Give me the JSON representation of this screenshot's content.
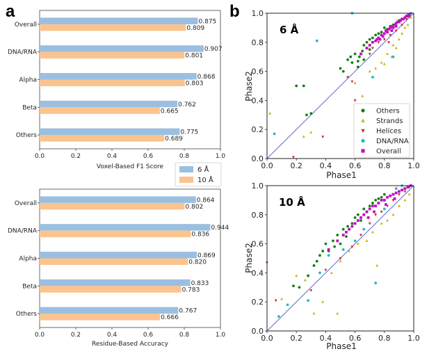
{
  "panel_labels": {
    "a": "a",
    "b": "b"
  },
  "colors": {
    "blue": "#9bbfe0",
    "orange": "#fbc48e",
    "line": "#5a6ad0",
    "others": "#118011",
    "strands": "#c8b400",
    "helices": "#d62020",
    "dna": "#20b8c8",
    "overall": "#c010c0"
  },
  "chart_data": [
    {
      "type": "bar",
      "orientation": "horizontal",
      "categories": [
        "Overall",
        "DNA/RNA",
        "Alpha",
        "Beta",
        "Others"
      ],
      "series": [
        {
          "name": "6 Å",
          "values": [
            0.875,
            0.907,
            0.868,
            0.762,
            0.775
          ]
        },
        {
          "name": "10 Å",
          "values": [
            0.809,
            0.801,
            0.803,
            0.665,
            0.689
          ]
        }
      ],
      "value_labels": [
        [
          "0.875",
          "0.907",
          "0.868",
          "0.762",
          "0.775"
        ],
        [
          "0.809",
          "0.801",
          "0.803",
          "0.665",
          "0.689"
        ]
      ],
      "xlabel": "Voxel-Based F1 Score",
      "xlim": [
        0,
        1
      ],
      "xticks": [
        "0.0",
        "0.2",
        "0.4",
        "0.6",
        "0.8",
        "1.0"
      ],
      "legend": "bottom-right"
    },
    {
      "type": "bar",
      "orientation": "horizontal",
      "categories": [
        "Overall",
        "DNA/RNA",
        "Alpha",
        "Beta",
        "Others"
      ],
      "series": [
        {
          "name": "6 Å",
          "values": [
            0.864,
            0.944,
            0.869,
            0.833,
            0.767
          ]
        },
        {
          "name": "10 Å",
          "values": [
            0.802,
            0.836,
            0.82,
            0.783,
            0.666
          ]
        }
      ],
      "value_labels": [
        [
          "0.864",
          "0.944",
          "0.869",
          "0.833",
          "0.767"
        ],
        [
          "0.802",
          "0.836",
          "0.820",
          "0.783",
          "0.666"
        ]
      ],
      "xlabel": "Residue-Based Accuracy",
      "xlim": [
        0,
        1
      ],
      "xticks": [
        "0.0",
        "0.2",
        "0.4",
        "0.6",
        "0.8",
        "1.0"
      ]
    },
    {
      "type": "scatter",
      "title": "6 Å",
      "xlabel": "Phase1",
      "ylabel": "Phase2",
      "xlim": [
        0,
        1
      ],
      "ylim": [
        0,
        1
      ],
      "ticks": [
        "0.0",
        "0.2",
        "0.4",
        "0.6",
        "0.8",
        "1.0"
      ],
      "legend": "bottom-right",
      "legend_entries": [
        "Others",
        "Strands",
        "Helices",
        "DNA/RNA",
        "Overall"
      ],
      "series": [
        {
          "name": "Others",
          "points": [
            [
              0.2,
              0.5
            ],
            [
              0.25,
              0.5
            ],
            [
              0.27,
              0.3
            ],
            [
              0.3,
              0.31
            ],
            [
              0.5,
              0.62
            ],
            [
              0.52,
              0.6
            ],
            [
              0.55,
              0.68
            ],
            [
              0.57,
              0.7
            ],
            [
              0.58,
              0.66
            ],
            [
              0.6,
              0.72
            ],
            [
              0.62,
              0.67
            ],
            [
              0.63,
              0.7
            ],
            [
              0.65,
              0.74
            ],
            [
              0.66,
              0.78
            ],
            [
              0.68,
              0.8
            ],
            [
              0.7,
              0.82
            ],
            [
              0.72,
              0.83
            ],
            [
              0.74,
              0.85
            ],
            [
              0.76,
              0.86
            ],
            [
              0.78,
              0.87
            ],
            [
              0.8,
              0.9
            ],
            [
              0.82,
              0.89
            ],
            [
              0.84,
              0.91
            ],
            [
              0.86,
              0.92
            ],
            [
              0.88,
              0.93
            ],
            [
              0.9,
              0.95
            ],
            [
              0.92,
              0.96
            ],
            [
              0.62,
              0.63
            ],
            [
              0.66,
              0.68
            ],
            [
              0.7,
              0.75
            ]
          ]
        },
        {
          "name": "Strands",
          "points": [
            [
              0.02,
              0.31
            ],
            [
              0.25,
              0.15
            ],
            [
              0.3,
              0.18
            ],
            [
              0.6,
              0.52
            ],
            [
              0.65,
              0.43
            ],
            [
              0.7,
              0.6
            ],
            [
              0.74,
              0.62
            ],
            [
              0.78,
              0.66
            ],
            [
              0.82,
              0.72
            ],
            [
              0.86,
              0.78
            ],
            [
              0.88,
              0.76
            ],
            [
              0.9,
              0.82
            ],
            [
              0.92,
              0.86
            ],
            [
              0.94,
              0.9
            ],
            [
              0.96,
              0.92
            ],
            [
              0.98,
              0.97
            ],
            [
              0.85,
              0.7
            ],
            [
              0.8,
              0.65
            ]
          ]
        },
        {
          "name": "Helices",
          "points": [
            [
              0.18,
              0.01
            ],
            [
              0.38,
              0.15
            ],
            [
              0.55,
              0.56
            ],
            [
              0.58,
              0.53
            ],
            [
              0.6,
              0.4
            ],
            [
              0.72,
              0.76
            ],
            [
              0.76,
              0.8
            ],
            [
              0.8,
              0.82
            ],
            [
              0.84,
              0.85
            ],
            [
              0.88,
              0.88
            ],
            [
              0.92,
              0.92
            ],
            [
              0.95,
              0.96
            ],
            [
              0.97,
              0.98
            ],
            [
              0.7,
              0.72
            ],
            [
              0.83,
              0.8
            ]
          ]
        },
        {
          "name": "DNA/RNA",
          "points": [
            [
              0.05,
              0.17
            ],
            [
              0.34,
              0.81
            ],
            [
              0.58,
              1.0
            ],
            [
              0.72,
              0.56
            ],
            [
              0.86,
              0.7
            ],
            [
              0.96,
              0.99
            ],
            [
              0.98,
              1.0
            ]
          ]
        },
        {
          "name": "Overall",
          "points": [
            [
              0.64,
              0.72
            ],
            [
              0.68,
              0.76
            ],
            [
              0.7,
              0.78
            ],
            [
              0.72,
              0.8
            ],
            [
              0.74,
              0.81
            ],
            [
              0.76,
              0.83
            ],
            [
              0.78,
              0.85
            ],
            [
              0.8,
              0.86
            ],
            [
              0.81,
              0.88
            ],
            [
              0.82,
              0.87
            ],
            [
              0.83,
              0.89
            ],
            [
              0.84,
              0.9
            ],
            [
              0.85,
              0.91
            ],
            [
              0.86,
              0.9
            ],
            [
              0.87,
              0.92
            ],
            [
              0.88,
              0.93
            ],
            [
              0.89,
              0.94
            ],
            [
              0.9,
              0.94
            ],
            [
              0.91,
              0.95
            ],
            [
              0.92,
              0.96
            ],
            [
              0.93,
              0.96
            ],
            [
              0.94,
              0.97
            ],
            [
              0.95,
              0.98
            ],
            [
              0.96,
              0.98
            ],
            [
              0.97,
              0.99
            ],
            [
              0.79,
              0.84
            ],
            [
              0.77,
              0.82
            ],
            [
              0.75,
              0.82
            ],
            [
              0.85,
              0.88
            ],
            [
              0.88,
              0.91
            ]
          ]
        }
      ]
    },
    {
      "type": "scatter",
      "title": "10 Å",
      "xlabel": "Phase1",
      "ylabel": "Phase2",
      "xlim": [
        0,
        1
      ],
      "ylim": [
        0,
        1
      ],
      "ticks": [
        "0.0",
        "0.2",
        "0.4",
        "0.6",
        "0.8",
        "1.0"
      ],
      "series": [
        {
          "name": "Others",
          "points": [
            [
              0.18,
              0.31
            ],
            [
              0.22,
              0.3
            ],
            [
              0.28,
              0.38
            ],
            [
              0.32,
              0.45
            ],
            [
              0.36,
              0.52
            ],
            [
              0.38,
              0.55
            ],
            [
              0.4,
              0.6
            ],
            [
              0.42,
              0.55
            ],
            [
              0.45,
              0.62
            ],
            [
              0.48,
              0.66
            ],
            [
              0.5,
              0.6
            ],
            [
              0.52,
              0.7
            ],
            [
              0.55,
              0.72
            ],
            [
              0.58,
              0.74
            ],
            [
              0.6,
              0.78
            ],
            [
              0.62,
              0.8
            ],
            [
              0.64,
              0.76
            ],
            [
              0.66,
              0.84
            ],
            [
              0.68,
              0.82
            ],
            [
              0.7,
              0.86
            ],
            [
              0.72,
              0.88
            ],
            [
              0.74,
              0.9
            ],
            [
              0.76,
              0.91
            ],
            [
              0.78,
              0.92
            ],
            [
              0.8,
              0.94
            ],
            [
              0.46,
              0.58
            ],
            [
              0.54,
              0.65
            ],
            [
              0.34,
              0.48
            ]
          ]
        },
        {
          "name": "Strands",
          "points": [
            [
              0.1,
              0.22
            ],
            [
              0.2,
              0.38
            ],
            [
              0.26,
              0.35
            ],
            [
              0.32,
              0.12
            ],
            [
              0.38,
              0.2
            ],
            [
              0.44,
              0.4
            ],
            [
              0.5,
              0.48
            ],
            [
              0.56,
              0.55
            ],
            [
              0.62,
              0.6
            ],
            [
              0.68,
              0.62
            ],
            [
              0.72,
              0.68
            ],
            [
              0.75,
              0.45
            ],
            [
              0.78,
              0.74
            ],
            [
              0.82,
              0.76
            ],
            [
              0.86,
              0.8
            ],
            [
              0.9,
              0.86
            ],
            [
              0.94,
              0.9
            ],
            [
              0.97,
              0.94
            ],
            [
              0.48,
              0.12
            ]
          ]
        },
        {
          "name": "Helices",
          "points": [
            [
              0.0,
              0.47
            ],
            [
              0.06,
              0.21
            ],
            [
              0.3,
              0.28
            ],
            [
              0.4,
              0.42
            ],
            [
              0.5,
              0.5
            ],
            [
              0.58,
              0.58
            ],
            [
              0.64,
              0.66
            ],
            [
              0.7,
              0.74
            ],
            [
              0.74,
              0.8
            ],
            [
              0.78,
              0.82
            ],
            [
              0.82,
              0.86
            ],
            [
              0.86,
              0.9
            ],
            [
              0.9,
              0.94
            ],
            [
              0.94,
              0.96
            ],
            [
              0.97,
              0.99
            ]
          ]
        },
        {
          "name": "DNA/RNA",
          "points": [
            [
              0.08,
              0.1
            ],
            [
              0.14,
              0.18
            ],
            [
              0.28,
              0.21
            ],
            [
              0.36,
              0.4
            ],
            [
              0.42,
              0.52
            ],
            [
              0.52,
              0.56
            ],
            [
              0.6,
              0.62
            ],
            [
              0.66,
              0.7
            ],
            [
              0.74,
              0.33
            ],
            [
              0.8,
              0.84
            ],
            [
              0.88,
              0.98
            ],
            [
              0.92,
              1.0
            ],
            [
              0.96,
              0.99
            ]
          ]
        },
        {
          "name": "Overall",
          "points": [
            [
              0.42,
              0.56
            ],
            [
              0.48,
              0.62
            ],
            [
              0.52,
              0.66
            ],
            [
              0.54,
              0.68
            ],
            [
              0.56,
              0.7
            ],
            [
              0.58,
              0.72
            ],
            [
              0.6,
              0.74
            ],
            [
              0.62,
              0.76
            ],
            [
              0.64,
              0.78
            ],
            [
              0.66,
              0.8
            ],
            [
              0.68,
              0.82
            ],
            [
              0.7,
              0.84
            ],
            [
              0.72,
              0.86
            ],
            [
              0.74,
              0.86
            ],
            [
              0.76,
              0.88
            ],
            [
              0.78,
              0.9
            ],
            [
              0.8,
              0.9
            ],
            [
              0.82,
              0.92
            ],
            [
              0.84,
              0.93
            ],
            [
              0.86,
              0.94
            ],
            [
              0.88,
              0.95
            ],
            [
              0.9,
              0.96
            ],
            [
              0.92,
              0.97
            ],
            [
              0.94,
              0.98
            ],
            [
              0.96,
              0.99
            ],
            [
              0.98,
              1.0
            ],
            [
              0.73,
              0.82
            ],
            [
              0.69,
              0.78
            ],
            [
              0.81,
              0.87
            ],
            [
              0.87,
              0.91
            ]
          ]
        }
      ]
    }
  ]
}
